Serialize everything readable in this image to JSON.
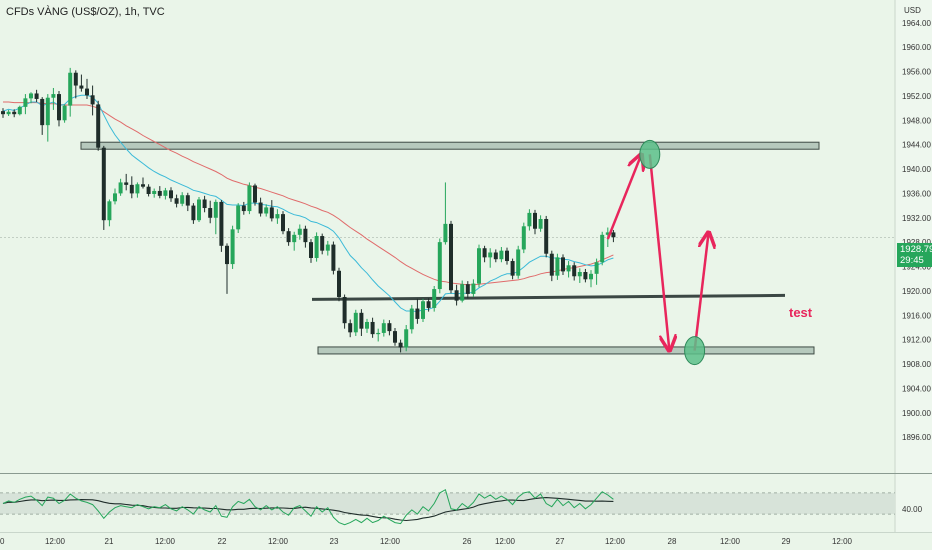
{
  "title": "CFDs VÀNG (US$/OZ), 1h, TVC",
  "currency": "USD",
  "current_price": "1928.79",
  "countdown": "29:45",
  "annotation_text": "test",
  "rsi_level_label": "40.00",
  "colors": {
    "background": "#eaf5e9",
    "up_candle": "#26a65b",
    "down_candle": "#1f2d2a",
    "ema_fast": "#3bbad8",
    "ema_slow": "#e06b6b",
    "zone_fill": "#b6c9bd",
    "arrow": "#e8265c",
    "circle": "#5cc08a",
    "support_line": "#3b4744"
  },
  "chart_data": {
    "type": "candlestick",
    "symbol": "CFDs VÀNG (US$/OZ)",
    "timeframe": "1h",
    "y_axis_ticks": [
      "1964.00",
      "1960.00",
      "1956.00",
      "1952.00",
      "1948.00",
      "1944.00",
      "1940.00",
      "1936.00",
      "1932.00",
      "1928.00",
      "1924.00",
      "1920.00",
      "1916.00",
      "1912.00",
      "1908.00",
      "1904.00",
      "1900.00",
      "1896.00"
    ],
    "ylim": [
      1892,
      1967
    ],
    "x_axis_ticks": [
      "0",
      "12:00",
      "21",
      "12:00",
      "22",
      "12:00",
      "23",
      "12:00",
      "26",
      "12:00",
      "27",
      "12:00",
      "28",
      "12:00",
      "29",
      "12:00"
    ],
    "candles": [
      [
        1949.5,
        1950.0,
        1948.4,
        1949.0
      ],
      [
        1949.0,
        1949.7,
        1948.7,
        1949.4
      ],
      [
        1949.4,
        1949.8,
        1948.5,
        1949.0
      ],
      [
        1949.0,
        1950.4,
        1948.8,
        1950.2
      ],
      [
        1950.2,
        1952.3,
        1949.0,
        1951.6
      ],
      [
        1951.6,
        1952.6,
        1950.8,
        1952.4
      ],
      [
        1952.4,
        1953.0,
        1951.0,
        1951.5
      ],
      [
        1951.5,
        1951.8,
        1945.6,
        1947.2
      ],
      [
        1947.2,
        1952.3,
        1944.5,
        1951.7
      ],
      [
        1951.7,
        1953.3,
        1949.7,
        1952.3
      ],
      [
        1952.3,
        1952.8,
        1947.0,
        1948.0
      ],
      [
        1948.0,
        1950.6,
        1947.6,
        1950.4
      ],
      [
        1950.4,
        1956.6,
        1948.6,
        1955.8
      ],
      [
        1955.8,
        1956.2,
        1951.6,
        1953.7
      ],
      [
        1953.7,
        1955.5,
        1952.7,
        1953.2
      ],
      [
        1953.2,
        1954.8,
        1951.5,
        1952.1
      ],
      [
        1952.1,
        1953.7,
        1948.8,
        1950.6
      ],
      [
        1950.6,
        1951.2,
        1943.0,
        1943.5
      ],
      [
        1943.5,
        1943.8,
        1930.0,
        1931.6
      ],
      [
        1931.6,
        1935.0,
        1930.6,
        1934.7
      ],
      [
        1934.7,
        1936.8,
        1934.2,
        1936.0
      ],
      [
        1936.0,
        1938.4,
        1935.6,
        1937.8
      ],
      [
        1937.8,
        1939.2,
        1936.5,
        1937.4
      ],
      [
        1937.4,
        1938.8,
        1935.2,
        1936.0
      ],
      [
        1936.0,
        1937.8,
        1935.3,
        1937.5
      ],
      [
        1937.5,
        1938.6,
        1936.8,
        1937.1
      ],
      [
        1937.1,
        1937.5,
        1935.5,
        1935.9
      ],
      [
        1935.9,
        1936.8,
        1935.3,
        1936.4
      ],
      [
        1936.4,
        1937.2,
        1935.2,
        1935.6
      ],
      [
        1935.6,
        1936.9,
        1935.0,
        1936.5
      ],
      [
        1936.5,
        1937.0,
        1934.6,
        1935.2
      ],
      [
        1935.2,
        1935.8,
        1933.7,
        1934.3
      ],
      [
        1934.3,
        1936.2,
        1933.9,
        1935.7
      ],
      [
        1935.7,
        1936.1,
        1933.1,
        1934.0
      ],
      [
        1934.0,
        1934.4,
        1931.0,
        1931.6
      ],
      [
        1931.6,
        1935.4,
        1931.3,
        1935.0
      ],
      [
        1935.0,
        1935.6,
        1932.9,
        1933.6
      ],
      [
        1933.6,
        1934.8,
        1931.1,
        1932.0
      ],
      [
        1932.0,
        1935.0,
        1929.3,
        1934.6
      ],
      [
        1934.6,
        1934.9,
        1926.4,
        1927.4
      ],
      [
        1927.4,
        1927.8,
        1919.5,
        1924.4
      ],
      [
        1924.4,
        1930.7,
        1923.6,
        1930.1
      ],
      [
        1930.1,
        1934.4,
        1929.5,
        1934.0
      ],
      [
        1934.0,
        1934.6,
        1932.5,
        1933.1
      ],
      [
        1933.1,
        1937.8,
        1932.6,
        1937.3
      ],
      [
        1937.3,
        1937.6,
        1934.0,
        1934.5
      ],
      [
        1934.5,
        1935.3,
        1932.2,
        1932.7
      ],
      [
        1932.7,
        1934.2,
        1932.2,
        1933.7
      ],
      [
        1933.7,
        1934.9,
        1931.4,
        1931.9
      ],
      [
        1931.9,
        1933.4,
        1931.0,
        1932.6
      ],
      [
        1932.6,
        1933.1,
        1929.3,
        1929.8
      ],
      [
        1929.8,
        1930.3,
        1927.4,
        1928.0
      ],
      [
        1928.0,
        1929.7,
        1926.6,
        1929.2
      ],
      [
        1929.2,
        1930.9,
        1928.4,
        1930.2
      ],
      [
        1930.2,
        1930.7,
        1927.1,
        1928.0
      ],
      [
        1928.0,
        1928.5,
        1924.6,
        1925.4
      ],
      [
        1925.4,
        1929.6,
        1924.8,
        1929.0
      ],
      [
        1929.0,
        1929.4,
        1926.0,
        1926.6
      ],
      [
        1926.6,
        1928.2,
        1925.8,
        1927.6
      ],
      [
        1927.6,
        1928.1,
        1922.7,
        1923.3
      ],
      [
        1923.3,
        1923.8,
        1918.3,
        1919.0
      ],
      [
        1919.0,
        1919.4,
        1913.8,
        1914.7
      ],
      [
        1914.7,
        1915.3,
        1912.4,
        1913.2
      ],
      [
        1913.2,
        1916.9,
        1912.6,
        1916.4
      ],
      [
        1916.4,
        1917.0,
        1912.6,
        1913.8
      ],
      [
        1913.8,
        1915.4,
        1913.1,
        1914.9
      ],
      [
        1914.9,
        1915.6,
        1912.3,
        1912.9
      ],
      [
        1912.9,
        1913.8,
        1911.7,
        1913.1
      ],
      [
        1913.1,
        1915.3,
        1912.5,
        1914.7
      ],
      [
        1914.7,
        1915.2,
        1912.7,
        1913.4
      ],
      [
        1913.4,
        1913.9,
        1911.0,
        1911.5
      ],
      [
        1911.5,
        1912.0,
        1909.9,
        1910.7
      ],
      [
        1910.7,
        1914.4,
        1910.1,
        1913.7
      ],
      [
        1913.7,
        1917.7,
        1913.0,
        1917.1
      ],
      [
        1917.1,
        1918.7,
        1914.6,
        1915.4
      ],
      [
        1915.4,
        1918.7,
        1914.9,
        1918.3
      ],
      [
        1918.3,
        1918.8,
        1916.6,
        1917.2
      ],
      [
        1917.2,
        1920.8,
        1916.6,
        1920.3
      ],
      [
        1920.3,
        1928.6,
        1919.6,
        1928.0
      ],
      [
        1928.0,
        1937.8,
        1927.6,
        1931.0
      ],
      [
        1931.0,
        1931.5,
        1919.6,
        1920.1
      ],
      [
        1920.1,
        1921.0,
        1917.6,
        1918.4
      ],
      [
        1918.4,
        1921.7,
        1918.1,
        1921.1
      ],
      [
        1921.1,
        1921.6,
        1918.8,
        1919.5
      ],
      [
        1919.5,
        1921.9,
        1919.0,
        1921.2
      ],
      [
        1921.2,
        1927.6,
        1920.6,
        1927.0
      ],
      [
        1927.0,
        1927.4,
        1924.7,
        1925.5
      ],
      [
        1925.5,
        1927.0,
        1923.8,
        1926.3
      ],
      [
        1926.3,
        1926.8,
        1924.7,
        1925.2
      ],
      [
        1925.2,
        1927.2,
        1924.7,
        1926.6
      ],
      [
        1926.6,
        1927.1,
        1924.3,
        1924.9
      ],
      [
        1924.9,
        1925.3,
        1921.9,
        1922.5
      ],
      [
        1922.5,
        1927.4,
        1922.0,
        1926.8
      ],
      [
        1926.8,
        1931.2,
        1926.2,
        1930.6
      ],
      [
        1930.6,
        1933.4,
        1929.9,
        1932.8
      ],
      [
        1932.8,
        1933.3,
        1929.3,
        1930.2
      ],
      [
        1930.2,
        1932.4,
        1929.7,
        1931.8
      ],
      [
        1931.8,
        1932.3,
        1925.5,
        1926.1
      ],
      [
        1926.1,
        1926.6,
        1921.6,
        1922.5
      ],
      [
        1922.5,
        1926.1,
        1921.8,
        1925.5
      ],
      [
        1925.5,
        1926.0,
        1922.6,
        1923.2
      ],
      [
        1923.2,
        1924.9,
        1922.2,
        1924.2
      ],
      [
        1924.2,
        1924.7,
        1921.7,
        1922.4
      ],
      [
        1922.4,
        1923.7,
        1921.3,
        1923.1
      ],
      [
        1923.1,
        1923.6,
        1921.4,
        1921.9
      ],
      [
        1921.9,
        1923.4,
        1920.6,
        1922.8
      ],
      [
        1922.8,
        1925.3,
        1921.0,
        1924.7
      ],
      [
        1924.7,
        1929.7,
        1924.2,
        1929.2
      ],
      [
        1929.2,
        1930.4,
        1927.2,
        1929.6
      ],
      [
        1929.6,
        1930.0,
        1928.0,
        1928.8
      ]
    ],
    "ema_fast": [
      1949.5,
      1949.8,
      1949.6,
      1950.0,
      1950.5,
      1951.0,
      1951.0,
      1950.4,
      1950.7,
      1951.0,
      1950.4,
      1950.6,
      1951.5,
      1951.9,
      1952.1,
      1952.1,
      1951.8,
      1950.8,
      1948.9,
      1947.1,
      1945.6,
      1944.4,
      1943.3,
      1942.3,
      1941.6,
      1940.9,
      1940.2,
      1939.6,
      1939.1,
      1938.7,
      1938.2,
      1937.8,
      1937.4,
      1937.0,
      1936.5,
      1936.3,
      1936.0,
      1935.7,
      1935.5,
      1934.9,
      1934.2,
      1934.1,
      1934.1,
      1934.0,
      1934.4,
      1934.4,
      1934.2,
      1934.1,
      1933.9,
      1933.8,
      1933.4,
      1932.9,
      1932.5,
      1932.3,
      1932.0,
      1931.4,
      1931.2,
      1930.8,
      1930.4,
      1929.8,
      1928.7,
      1927.2,
      1925.8,
      1924.9,
      1923.8,
      1922.9,
      1921.8,
      1920.8,
      1920.0,
      1919.2,
      1918.2,
      1917.2,
      1916.7,
      1916.7,
      1916.6,
      1916.9,
      1917.0,
      1917.3,
      1918.3,
      1919.5,
      1919.6,
      1919.5,
      1919.6,
      1919.6,
      1919.8,
      1920.5,
      1921.0,
      1921.6,
      1922.0,
      1922.5,
      1922.8,
      1922.8,
      1923.2,
      1923.9,
      1924.7,
      1925.2,
      1925.7,
      1925.7,
      1925.4,
      1925.4,
      1925.2,
      1925.1,
      1924.8,
      1924.6,
      1924.3,
      1924.1,
      1924.2,
      1924.6,
      1925.1,
      1925.4
    ],
    "ema_slow": [
      1951.0,
      1951.0,
      1950.9,
      1950.9,
      1950.9,
      1950.9,
      1950.9,
      1950.8,
      1950.7,
      1950.7,
      1950.6,
      1950.5,
      1950.5,
      1950.5,
      1950.5,
      1950.5,
      1950.3,
      1950.0,
      1949.4,
      1948.8,
      1948.2,
      1947.7,
      1947.1,
      1946.6,
      1946.1,
      1945.5,
      1945.0,
      1944.5,
      1944.0,
      1943.5,
      1943.0,
      1942.6,
      1942.1,
      1941.7,
      1941.2,
      1940.8,
      1940.4,
      1940.0,
      1939.6,
      1939.1,
      1938.5,
      1938.1,
      1937.8,
      1937.5,
      1937.3,
      1937.0,
      1936.8,
      1936.5,
      1936.2,
      1935.9,
      1935.6,
      1935.2,
      1934.9,
      1934.6,
      1934.3,
      1933.9,
      1933.6,
      1933.2,
      1932.9,
      1932.4,
      1931.8,
      1931.1,
      1930.4,
      1929.8,
      1929.2,
      1928.5,
      1927.9,
      1927.3,
      1926.7,
      1926.1,
      1925.5,
      1924.8,
      1924.2,
      1923.7,
      1923.2,
      1922.7,
      1922.3,
      1921.9,
      1921.6,
      1921.5,
      1921.3,
      1921.2,
      1921.1,
      1921.0,
      1921.0,
      1921.1,
      1921.2,
      1921.3,
      1921.4,
      1921.5,
      1921.6,
      1921.7,
      1921.8,
      1922.0,
      1922.3,
      1922.5,
      1922.8,
      1923.0,
      1923.1,
      1923.3,
      1923.5,
      1923.7,
      1923.8,
      1924.0,
      1924.2,
      1924.4,
      1924.7,
      1925.1,
      1925.5,
      1925.9
    ],
    "zones": [
      {
        "from": 1943.3,
        "to": 1944.4
      },
      {
        "from": 1909.8,
        "to": 1910.8
      }
    ],
    "support_line": 1918.6,
    "projection": [
      {
        "type": "arrow",
        "from": {
          "bar": 108,
          "price": 1928.5
        },
        "to": {
          "bar": 114,
          "price": 1942.4
        }
      },
      {
        "type": "circle",
        "at": {
          "bar": 115.5,
          "price": 1942.4
        }
      },
      {
        "type": "arrow",
        "from": {
          "bar": 115.5,
          "price": 1942.4
        },
        "to": {
          "bar": 119,
          "price": 1910.2
        }
      },
      {
        "type": "circle",
        "at": {
          "bar": 123.5,
          "price": 1910.2
        }
      },
      {
        "type": "arrow",
        "from": {
          "bar": 123.5,
          "price": 1910.2
        },
        "to": {
          "bar": 126,
          "price": 1929.6
        }
      }
    ],
    "rsi": {
      "level": 40,
      "band": [
        30,
        70
      ],
      "ylim": [
        0,
        100
      ],
      "values": [
        50,
        55,
        52,
        58,
        62,
        64,
        56,
        46,
        62,
        60,
        50,
        56,
        68,
        60,
        55,
        52,
        48,
        36,
        22,
        34,
        42,
        46,
        44,
        42,
        48,
        44,
        40,
        44,
        42,
        48,
        40,
        36,
        44,
        38,
        30,
        44,
        38,
        34,
        46,
        26,
        24,
        44,
        54,
        50,
        58,
        44,
        38,
        46,
        38,
        44,
        34,
        28,
        42,
        46,
        36,
        26,
        44,
        34,
        42,
        24,
        14,
        10,
        14,
        20,
        14,
        22,
        14,
        18,
        26,
        20,
        14,
        12,
        28,
        38,
        30,
        44,
        36,
        50,
        70,
        76,
        40,
        38,
        50,
        42,
        52,
        68,
        60,
        66,
        58,
        64,
        58,
        48,
        62,
        70,
        72,
        60,
        68,
        50,
        44,
        58,
        46,
        54,
        42,
        50,
        40,
        48,
        60,
        72,
        66,
        58
      ]
    }
  }
}
